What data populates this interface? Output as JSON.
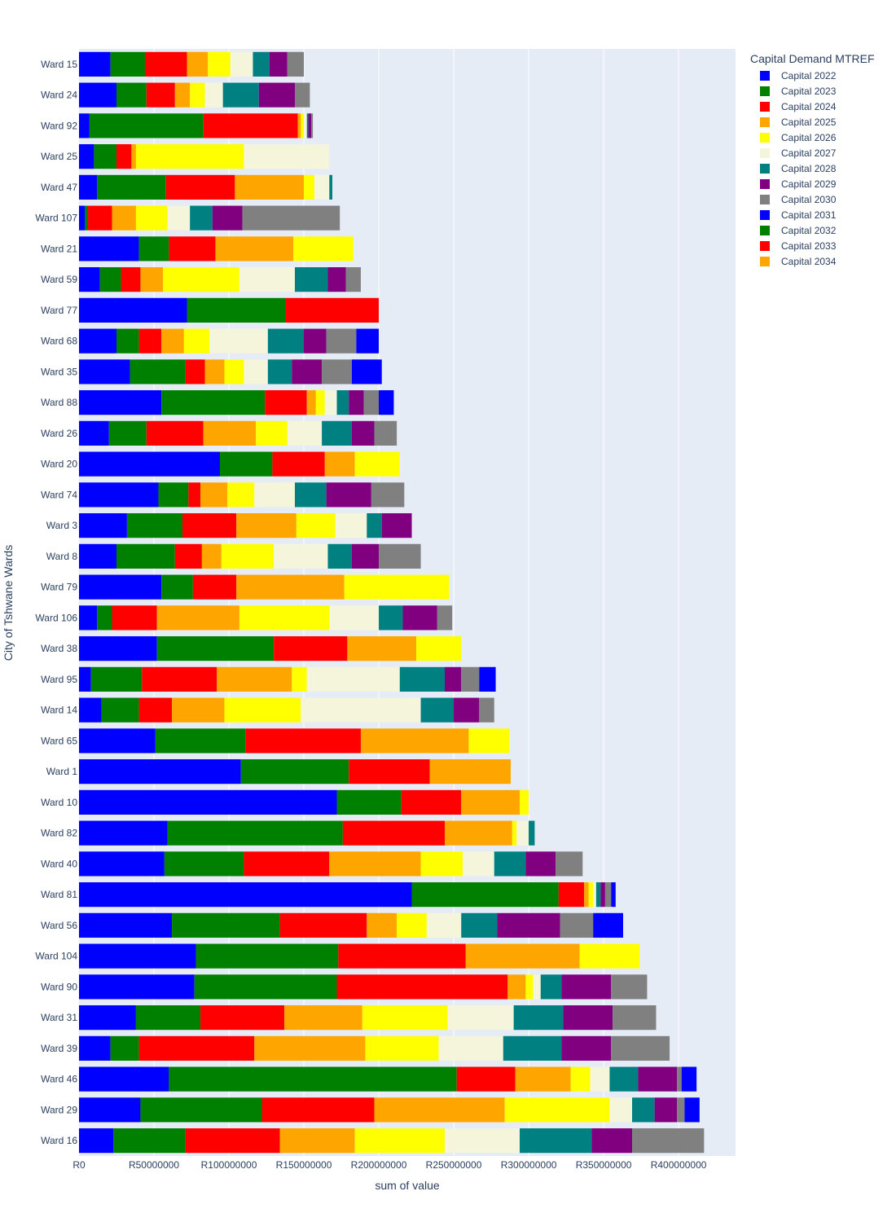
{
  "chart_data": {
    "type": "bar",
    "orientation": "horizontal",
    "barmode": "stack",
    "xlabel": "sum of value",
    "ylabel": "City of Tshwane Wards",
    "xlim": [
      0,
      438000000
    ],
    "x_ticks": [
      {
        "value": 0,
        "label": "R0"
      },
      {
        "value": 50000000,
        "label": "R50000000"
      },
      {
        "value": 100000000,
        "label": "R100000000"
      },
      {
        "value": 150000000,
        "label": "R150000000"
      },
      {
        "value": 200000000,
        "label": "R200000000"
      },
      {
        "value": 250000000,
        "label": "R250000000"
      },
      {
        "value": 300000000,
        "label": "R300000000"
      },
      {
        "value": 350000000,
        "label": "R350000000"
      },
      {
        "value": 400000000,
        "label": "R400000000"
      }
    ],
    "grid": true,
    "legend_title": "Capital Demand MTREF",
    "legend_position": "top-right",
    "categories": [
      "Ward 15",
      "Ward 24",
      "Ward 92",
      "Ward 25",
      "Ward 47",
      "Ward 107",
      "Ward 21",
      "Ward 59",
      "Ward 77",
      "Ward 68",
      "Ward 35",
      "Ward 88",
      "Ward 26",
      "Ward 20",
      "Ward 74",
      "Ward 3",
      "Ward 8",
      "Ward 79",
      "Ward 106",
      "Ward 38",
      "Ward 95",
      "Ward 14",
      "Ward 65",
      "Ward 1",
      "Ward 10",
      "Ward 82",
      "Ward 40",
      "Ward 81",
      "Ward 56",
      "Ward 104",
      "Ward 90",
      "Ward 31",
      "Ward 39",
      "Ward 46",
      "Ward 29",
      "Ward 16"
    ],
    "series": [
      {
        "name": "Capital 2022",
        "color": "#0000ff",
        "values": [
          21000000,
          25000000,
          7000000,
          10000000,
          12000000,
          4000000,
          40000000,
          14000000,
          72000000,
          25000000,
          34000000,
          55000000,
          20000000,
          94000000,
          53000000,
          32000000,
          25000000,
          55000000,
          12000000,
          52000000,
          8000000,
          15000000,
          51000000,
          108000000,
          172000000,
          59000000,
          57000000,
          222000000,
          62000000,
          78000000,
          77000000,
          38000000,
          21000000,
          60000000,
          41000000,
          23000000
        ]
      },
      {
        "name": "Capital 2023",
        "color": "#008000",
        "values": [
          23000000,
          20000000,
          76000000,
          15000000,
          46000000,
          2000000,
          20000000,
          14000000,
          66000000,
          15000000,
          37000000,
          69000000,
          25000000,
          35000000,
          20000000,
          37000000,
          39000000,
          21000000,
          10000000,
          78000000,
          34000000,
          25000000,
          60000000,
          72000000,
          43000000,
          117000000,
          53000000,
          98000000,
          72000000,
          95000000,
          95000000,
          43000000,
          19000000,
          192000000,
          81000000,
          48000000
        ]
      },
      {
        "name": "Capital 2024",
        "color": "#ff0000",
        "values": [
          28000000,
          19000000,
          63000000,
          10000000,
          46000000,
          16000000,
          31000000,
          13000000,
          62000000,
          15000000,
          13000000,
          28000000,
          38000000,
          35000000,
          8000000,
          36000000,
          18000000,
          29000000,
          30000000,
          49000000,
          50000000,
          22000000,
          77000000,
          54000000,
          40000000,
          68000000,
          57000000,
          17000000,
          58000000,
          85000000,
          114000000,
          56000000,
          77000000,
          39000000,
          75000000,
          63000000
        ]
      },
      {
        "name": "Capital 2025",
        "color": "#ffa500",
        "values": [
          14000000,
          10000000,
          2000000,
          3000000,
          46000000,
          16000000,
          52000000,
          15000000,
          0,
          15000000,
          13000000,
          6000000,
          35000000,
          20000000,
          18000000,
          40000000,
          13000000,
          72000000,
          55000000,
          46000000,
          50000000,
          35000000,
          72000000,
          54000000,
          39000000,
          45000000,
          61000000,
          3000000,
          20000000,
          76000000,
          12000000,
          52000000,
          74000000,
          37000000,
          87000000,
          50000000
        ]
      },
      {
        "name": "Capital 2026",
        "color": "#ffff00",
        "values": [
          15000000,
          10000000,
          2000000,
          72000000,
          7000000,
          21000000,
          40000000,
          51000000,
          0,
          17000000,
          13000000,
          6000000,
          21000000,
          30000000,
          18000000,
          26000000,
          35000000,
          70000000,
          60000000,
          30000000,
          10000000,
          51000000,
          27000000,
          0,
          6000000,
          3000000,
          28000000,
          3000000,
          20000000,
          40000000,
          5000000,
          57000000,
          49000000,
          13000000,
          70000000,
          60000000
        ]
      },
      {
        "name": "Capital 2027",
        "color": "#f5f5dc",
        "values": [
          15000000,
          12000000,
          2000000,
          57000000,
          10000000,
          15000000,
          0,
          37000000,
          0,
          39000000,
          16000000,
          8000000,
          23000000,
          0,
          27000000,
          21000000,
          36000000,
          0,
          33000000,
          0,
          62000000,
          80000000,
          0,
          0,
          0,
          8000000,
          21000000,
          2000000,
          23000000,
          0,
          5000000,
          44000000,
          43000000,
          13000000,
          15000000,
          50000000
        ]
      },
      {
        "name": "Capital 2028",
        "color": "#008080",
        "values": [
          11000000,
          24000000,
          1000000,
          0,
          2000000,
          15000000,
          0,
          22000000,
          0,
          24000000,
          16000000,
          8000000,
          20000000,
          0,
          21000000,
          10000000,
          16000000,
          0,
          16000000,
          0,
          30000000,
          22000000,
          0,
          0,
          0,
          4000000,
          21000000,
          3000000,
          24000000,
          0,
          14000000,
          33000000,
          39000000,
          19000000,
          15000000,
          48000000
        ]
      },
      {
        "name": "Capital 2029",
        "color": "#800080",
        "values": [
          12000000,
          24000000,
          2000000,
          0,
          0,
          20000000,
          0,
          12000000,
          0,
          15000000,
          20000000,
          10000000,
          15000000,
          0,
          30000000,
          20000000,
          18000000,
          0,
          23000000,
          0,
          11000000,
          17000000,
          0,
          0,
          0,
          0,
          20000000,
          3000000,
          42000000,
          0,
          33000000,
          33000000,
          33000000,
          26000000,
          15000000,
          27000000
        ]
      },
      {
        "name": "Capital 2030",
        "color": "#808080",
        "values": [
          11000000,
          10000000,
          1000000,
          0,
          0,
          65000000,
          0,
          10000000,
          0,
          20000000,
          20000000,
          10000000,
          15000000,
          0,
          22000000,
          0,
          28000000,
          0,
          10000000,
          0,
          12000000,
          10000000,
          0,
          0,
          0,
          0,
          18000000,
          4000000,
          22000000,
          0,
          24000000,
          29000000,
          39000000,
          3000000,
          5000000,
          48000000
        ]
      },
      {
        "name": "Capital 2031",
        "color": "#0000ff",
        "values": [
          0,
          0,
          0,
          0,
          0,
          0,
          0,
          0,
          0,
          15000000,
          20000000,
          10000000,
          0,
          0,
          0,
          0,
          0,
          0,
          0,
          0,
          11000000,
          0,
          0,
          0,
          0,
          0,
          0,
          3000000,
          20000000,
          0,
          0,
          0,
          0,
          10000000,
          10000000,
          0
        ]
      },
      {
        "name": "Capital 2032",
        "color": "#008000",
        "values": [
          0,
          0,
          0,
          0,
          0,
          0,
          0,
          0,
          0,
          0,
          0,
          0,
          0,
          0,
          0,
          0,
          0,
          0,
          0,
          0,
          0,
          0,
          0,
          0,
          0,
          0,
          0,
          0,
          0,
          0,
          0,
          0,
          0,
          0,
          0,
          0
        ]
      },
      {
        "name": "Capital 2033",
        "color": "#ff0000",
        "values": [
          0,
          0,
          0,
          0,
          0,
          0,
          0,
          0,
          0,
          0,
          0,
          0,
          0,
          0,
          0,
          0,
          0,
          0,
          0,
          0,
          0,
          0,
          0,
          0,
          0,
          0,
          0,
          0,
          0,
          0,
          0,
          0,
          0,
          0,
          0,
          0
        ]
      },
      {
        "name": "Capital 2034",
        "color": "#ffa500",
        "values": [
          0,
          0,
          0,
          0,
          0,
          0,
          0,
          0,
          0,
          0,
          0,
          0,
          0,
          0,
          0,
          0,
          0,
          0,
          0,
          0,
          0,
          0,
          0,
          0,
          0,
          0,
          0,
          0,
          0,
          0,
          0,
          0,
          0,
          0,
          0,
          0
        ]
      }
    ]
  }
}
